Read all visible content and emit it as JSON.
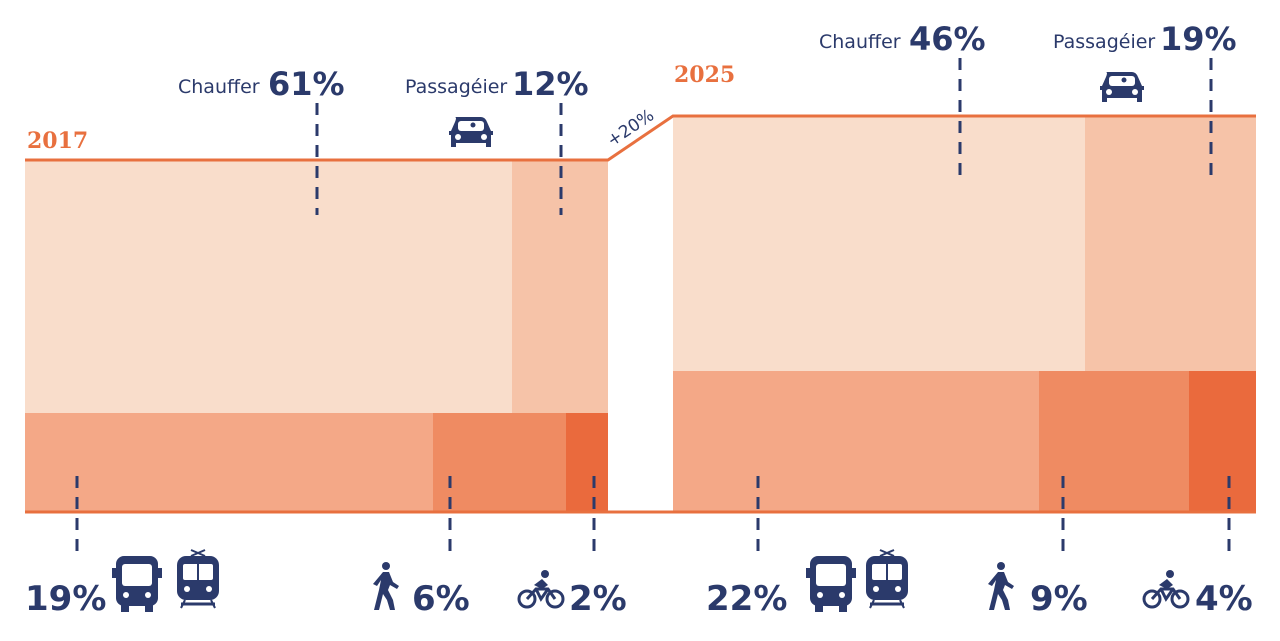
{
  "colors": {
    "driver": "#f9ddcb",
    "passenger": "#f6c3a8",
    "transit": "#f4a887",
    "walk": "#ef8b62",
    "bike": "#ea6a3d",
    "line": "#e8703f",
    "text": "#2b3a6b"
  },
  "chart_data": {
    "type": "area",
    "years": [
      "2017",
      "2025"
    ],
    "growth_label": "+20%",
    "series": [
      {
        "name": "Chauffer",
        "icon": "car-icon",
        "values": [
          61,
          46
        ]
      },
      {
        "name": "Passagéier",
        "icon": "car-icon",
        "values": [
          12,
          19
        ]
      },
      {
        "name": "",
        "icon": "bus-train-icon",
        "values": [
          19,
          22
        ]
      },
      {
        "name": "",
        "icon": "walker-icon",
        "values": [
          6,
          9
        ]
      },
      {
        "name": "",
        "icon": "cyclist-icon",
        "values": [
          2,
          4
        ]
      }
    ],
    "labels": {
      "2017": {
        "chauffer": "61%",
        "passagier": "12%",
        "transit": "19%",
        "walk": "6%",
        "bike": "2%"
      },
      "2025": {
        "chauffer": "46%",
        "passagier": "19%",
        "transit": "22%",
        "walk": "9%",
        "bike": "4%"
      }
    }
  }
}
